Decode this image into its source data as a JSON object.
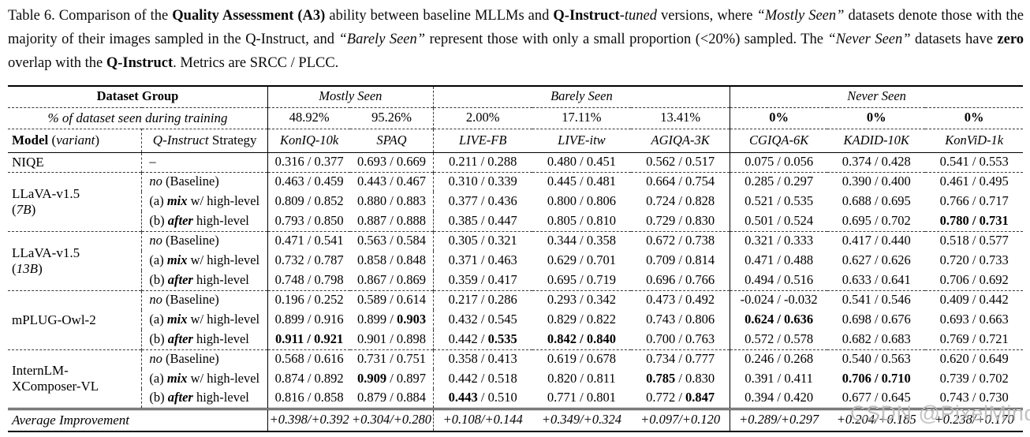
{
  "caption": {
    "text": "Table 6.  Comparison of the **Quality Assessment (A3)** ability between baseline MLLMs and **Q-Instruct**-*tuned* versions, where *“Mostly Seen”* datasets denote those with the majority of their images sampled in the Q-Instruct, and *“Barely Seen”* represent those with only a small proportion (<20%) sampled. The *“Never Seen”* datasets have **zero** overlap with the **Q-Instruct**. Metrics are SRCC / PLCC."
  },
  "table": {
    "dataset_group_label": "Dataset Group",
    "groups": [
      {
        "label": "Mostly Seen",
        "span": 2
      },
      {
        "label": "Barely Seen",
        "span": 3
      },
      {
        "label": "Never Seen",
        "span": 3
      }
    ],
    "seen_row_label": "% of dataset seen during training",
    "seen_percents": [
      "48.92%",
      "95.26%",
      "2.00%",
      "17.11%",
      "13.41%",
      "**0%**",
      "**0%**",
      "**0%**"
    ],
    "model_header": "**Model** (*variant*)",
    "strategy_header": "*Q-Instruct* Strategy",
    "datasets": [
      "KonIQ-10k",
      "SPAQ",
      "LIVE-FB",
      "LIVE-itw",
      "AGIQA-3K",
      "CGIQA-6K",
      "KADID-10K",
      "KonViD-1k"
    ],
    "blocks": [
      {
        "model_lines": [
          "NIQE"
        ],
        "rows": [
          {
            "strategy": "–",
            "values": [
              "0.316 / 0.377",
              "0.693 / 0.669",
              "0.211 / 0.288",
              "0.480 / 0.451",
              "0.562 / 0.517",
              "0.075 / 0.056",
              "0.374 / 0.428",
              "0.541 / 0.553"
            ]
          }
        ]
      },
      {
        "model_lines": [
          "LLaVA-v1.5",
          "(*7B*)"
        ],
        "rows": [
          {
            "strategy": "*no* (Baseline)",
            "values": [
              "0.463 / 0.459",
              "0.443 / 0.467",
              "0.310 / 0.339",
              "0.445 / 0.481",
              "0.664 / 0.754",
              "0.285 / 0.297",
              "0.390 / 0.400",
              "0.461 / 0.495"
            ]
          },
          {
            "strategy": "(a) ***mix*** w/ high-level",
            "values": [
              "0.809 / 0.852",
              "0.880 / 0.883",
              "0.377 / 0.436",
              "0.800 / 0.806",
              "0.724 / 0.828",
              "0.521 / 0.535",
              "0.688 / 0.695",
              "0.766 / 0.717"
            ]
          },
          {
            "strategy": "(b) ***after*** high-level",
            "values": [
              "0.793 / 0.850",
              "0.887 / 0.888",
              "0.385 / 0.447",
              "0.805 / 0.810",
              "0.729 / 0.830",
              "0.501 / 0.524",
              "0.695 / 0.702",
              "**0.780 / 0.731**"
            ]
          }
        ]
      },
      {
        "model_lines": [
          "LLaVA-v1.5",
          "(*13B*)"
        ],
        "rows": [
          {
            "strategy": "*no* (Baseline)",
            "values": [
              "0.471 / 0.541",
              "0.563 / 0.584",
              "0.305 / 0.321",
              "0.344 / 0.358",
              "0.672 / 0.738",
              "0.321 / 0.333",
              "0.417 / 0.440",
              "0.518 / 0.577"
            ]
          },
          {
            "strategy": "(a) ***mix*** w/ high-level",
            "values": [
              "0.732 / 0.787",
              "0.858 / 0.848",
              "0.371 / 0.463",
              "0.629 / 0.701",
              "0.709 / 0.814",
              "0.471 / 0.488",
              "0.627 / 0.626",
              "0.720 / 0.733"
            ]
          },
          {
            "strategy": "(b) ***after*** high-level",
            "values": [
              "0.748 / 0.798",
              "0.867 / 0.869",
              "0.359 / 0.417",
              "0.695 / 0.719",
              "0.696 / 0.766",
              "0.494 / 0.516",
              "0.633 / 0.641",
              "0.706 / 0.692"
            ]
          }
        ]
      },
      {
        "model_lines": [
          "mPLUG-Owl-2"
        ],
        "rows": [
          {
            "strategy": "*no* (Baseline)",
            "values": [
              "0.196 / 0.252",
              "0.589 / 0.614",
              "0.217 / 0.286",
              "0.293 / 0.342",
              "0.473 / 0.492",
              "-0.024 / -0.032",
              "0.541 / 0.546",
              "0.409 / 0.442"
            ]
          },
          {
            "strategy": "(a) ***mix*** w/ high-level",
            "values": [
              "0.899 / 0.916",
              "0.899 / **0.903**",
              "0.432 / 0.545",
              "0.829 / 0.822",
              "0.743 / 0.806",
              "**0.624 / 0.636**",
              "0.698 / 0.676",
              "0.693 / 0.663"
            ]
          },
          {
            "strategy": "(b) ***after*** high-level",
            "values": [
              "**0.911 / 0.921**",
              "0.901 / 0.898",
              "0.442 / **0.535**",
              "**0.842 / 0.840**",
              "0.700 / 0.763",
              "0.572 / 0.578",
              "0.682 / 0.683",
              "0.769 / 0.721"
            ]
          }
        ]
      },
      {
        "model_lines": [
          "InternLM-",
          "XComposer-VL"
        ],
        "rows": [
          {
            "strategy": "*no* (Baseline)",
            "values": [
              "0.568 / 0.616",
              "0.731 / 0.751",
              "0.358 / 0.413",
              "0.619 / 0.678",
              "0.734 / 0.777",
              "0.246 / 0.268",
              "0.540 / 0.563",
              "0.620 / 0.649"
            ]
          },
          {
            "strategy": "(a) ***mix*** w/ high-level",
            "values": [
              "0.874 / 0.892",
              "**0.909** / 0.897",
              "0.442 / 0.518",
              "0.820 / 0.811",
              "**0.785** / 0.830",
              "0.391 / 0.411",
              "**0.706 / 0.710**",
              "0.739 / 0.702"
            ]
          },
          {
            "strategy": "(b) ***after*** high-level",
            "values": [
              "0.816 / 0.858",
              "0.879 / 0.884",
              "**0.443** / 0.510",
              "0.771 / 0.801",
              "0.772 / **0.847**",
              "0.394 / 0.420",
              "0.677 / 0.645",
              "0.743 / 0.730"
            ]
          }
        ]
      }
    ],
    "average": {
      "label": "Average Improvement",
      "values": [
        "+0.398/+0.392",
        "+0.304/+0.280",
        "+0.108/+0.144",
        "+0.349/+0.324",
        "+0.097/+0.120",
        "+0.289/+0.297",
        "+0.204/+0.185",
        "+0.238/+0.170"
      ]
    }
  },
  "watermark": "CSDN @PixelMind"
}
